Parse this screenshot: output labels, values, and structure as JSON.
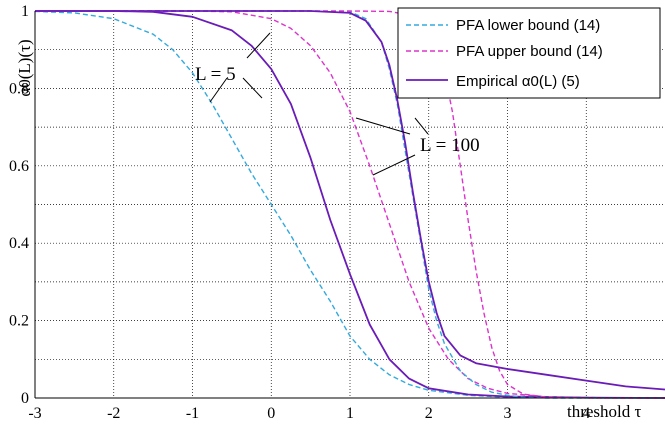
{
  "chart_data": {
    "type": "line",
    "title": "",
    "xlabel": "threshold τ",
    "ylabel": "α0(L)(τ)",
    "xlim": [
      -3,
      5
    ],
    "ylim": [
      0,
      1
    ],
    "x_ticks": [
      "-3",
      "-2",
      "-1",
      "0",
      "1",
      "2",
      "3",
      "4"
    ],
    "y_ticks": [
      "0",
      "0.2",
      "0.4",
      "0.6",
      "0.8",
      "1"
    ],
    "grid": true,
    "legend_position": "top-right",
    "legend": [
      {
        "label": "PFA lower bound (14)",
        "color": "#33aadd",
        "style": "dashed"
      },
      {
        "label": "PFA upper bound (14)",
        "color": "#dd33cc",
        "style": "dashed"
      },
      {
        "label": "Empirical α0(L) (5)",
        "color": "#6a1bb8",
        "style": "solid"
      }
    ],
    "series": [
      {
        "name": "PFA lower bound (14)",
        "group": "L=5",
        "color": "#33aadd",
        "style": "dashed",
        "x": [
          -3,
          -2.5,
          -2,
          -1.5,
          -1.25,
          -1,
          -0.75,
          -0.5,
          -0.25,
          0,
          0.25,
          0.5,
          0.75,
          1,
          1.25,
          1.5,
          1.75,
          2,
          2.5,
          3,
          5
        ],
        "y": [
          0.999,
          0.995,
          0.98,
          0.94,
          0.9,
          0.84,
          0.76,
          0.67,
          0.58,
          0.5,
          0.42,
          0.33,
          0.25,
          0.16,
          0.1,
          0.06,
          0.035,
          0.02,
          0.007,
          0.002,
          0
        ]
      },
      {
        "name": "PFA upper bound (14)",
        "group": "L=5",
        "color": "#dd33cc",
        "style": "dashed",
        "x": [
          -3,
          -1,
          -0.5,
          0,
          0.25,
          0.5,
          0.75,
          1,
          1.25,
          1.5,
          1.75,
          2,
          2.25,
          2.5,
          2.75,
          3,
          3.5,
          4,
          5
        ],
        "y": [
          1,
          1,
          0.998,
          0.98,
          0.955,
          0.91,
          0.84,
          0.74,
          0.6,
          0.45,
          0.3,
          0.18,
          0.1,
          0.05,
          0.025,
          0.012,
          0.003,
          0.001,
          0
        ]
      },
      {
        "name": "Empirical α0(L) (5)",
        "group": "L=5",
        "color": "#6a1bb8",
        "style": "solid",
        "x": [
          -3,
          -2,
          -1.5,
          -1,
          -0.5,
          -0.25,
          0,
          0.25,
          0.5,
          0.75,
          1,
          1.25,
          1.5,
          1.75,
          2,
          2.5,
          3,
          4,
          5
        ],
        "y": [
          1,
          1,
          0.998,
          0.985,
          0.95,
          0.91,
          0.85,
          0.76,
          0.62,
          0.46,
          0.32,
          0.19,
          0.1,
          0.05,
          0.025,
          0.009,
          0.004,
          0.001,
          0
        ]
      },
      {
        "name": "PFA lower bound (14)",
        "group": "L=100",
        "color": "#33aadd",
        "style": "dashed",
        "x": [
          -3,
          0.5,
          1,
          1.2,
          1.4,
          1.5,
          1.6,
          1.7,
          1.8,
          1.9,
          2,
          2.1,
          2.2,
          2.4,
          2.6,
          2.8,
          3,
          3.2,
          3.5,
          4,
          5
        ],
        "y": [
          1,
          1,
          0.998,
          0.98,
          0.92,
          0.85,
          0.76,
          0.64,
          0.52,
          0.4,
          0.28,
          0.2,
          0.14,
          0.07,
          0.035,
          0.015,
          0.007,
          0.002,
          0,
          0,
          0
        ]
      },
      {
        "name": "PFA upper bound (14)",
        "group": "L=100",
        "color": "#dd33cc",
        "style": "dashed",
        "x": [
          -3,
          1,
          1.5,
          1.75,
          2,
          2.1,
          2.2,
          2.3,
          2.4,
          2.5,
          2.6,
          2.7,
          2.8,
          2.9,
          3,
          3.2,
          3.5,
          4,
          5
        ],
        "y": [
          1,
          1,
          0.999,
          0.99,
          0.95,
          0.91,
          0.84,
          0.74,
          0.6,
          0.46,
          0.33,
          0.22,
          0.13,
          0.07,
          0.035,
          0.01,
          0.002,
          0,
          0
        ]
      },
      {
        "name": "Empirical α0(L) (5)",
        "group": "L=100",
        "color": "#6a1bb8",
        "style": "solid",
        "x": [
          -3,
          0.5,
          1,
          1.2,
          1.4,
          1.5,
          1.6,
          1.7,
          1.8,
          1.9,
          2,
          2.1,
          2.2,
          2.4,
          2.6,
          3,
          3.5,
          4,
          4.5,
          5
        ],
        "y": [
          1,
          1,
          0.995,
          0.975,
          0.92,
          0.86,
          0.77,
          0.66,
          0.53,
          0.41,
          0.3,
          0.22,
          0.16,
          0.11,
          0.09,
          0.075,
          0.06,
          0.045,
          0.03,
          0.022
        ]
      }
    ],
    "annotations": [
      {
        "text": "L = 5"
      },
      {
        "text": "L = 100"
      }
    ]
  }
}
